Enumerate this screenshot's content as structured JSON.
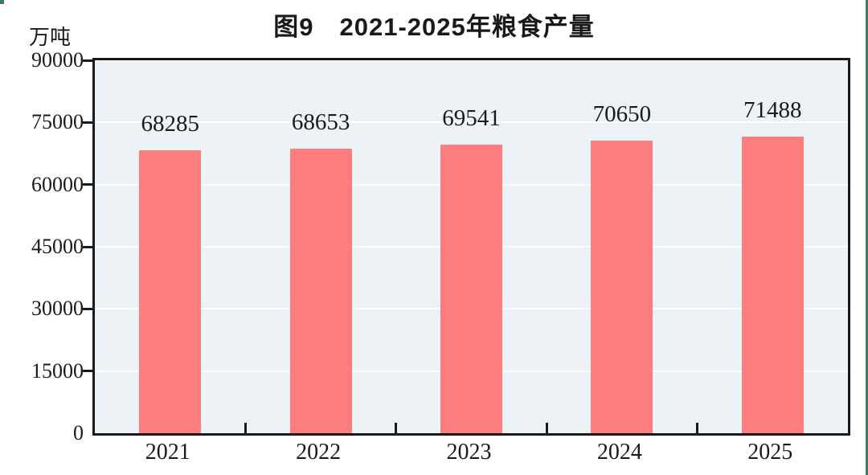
{
  "figure": {
    "page_right_edge_color": "#3B7E5B",
    "page_corner_mark_color": "#3B7E5B"
  },
  "chart_data": {
    "type": "bar",
    "title": "图9　2021-2025年粮食产量",
    "subtitle": "",
    "xlabel": "",
    "ylabel": "万吨",
    "categories": [
      "2021",
      "2022",
      "2023",
      "2024",
      "2025"
    ],
    "values": [
      68285,
      68653,
      69541,
      70650,
      71488
    ],
    "value_labels": [
      "68285",
      "68653",
      "69541",
      "70650",
      "71488"
    ],
    "series_name": "粮食产量",
    "ylim": [
      0,
      90000
    ],
    "yticks": [
      0,
      15000,
      30000,
      45000,
      60000,
      75000,
      90000
    ],
    "ytick_labels": [
      "0",
      "15000",
      "30000",
      "45000",
      "60000",
      "75000",
      "90000"
    ],
    "grid": "horizontal",
    "legend": "none",
    "colors": {
      "bar": "#FB7D7D",
      "plot_background": "#EDF2F7",
      "gridline": "#FFFFFF",
      "axis": "#1A1A1A",
      "text": "#1A1A1A"
    }
  }
}
